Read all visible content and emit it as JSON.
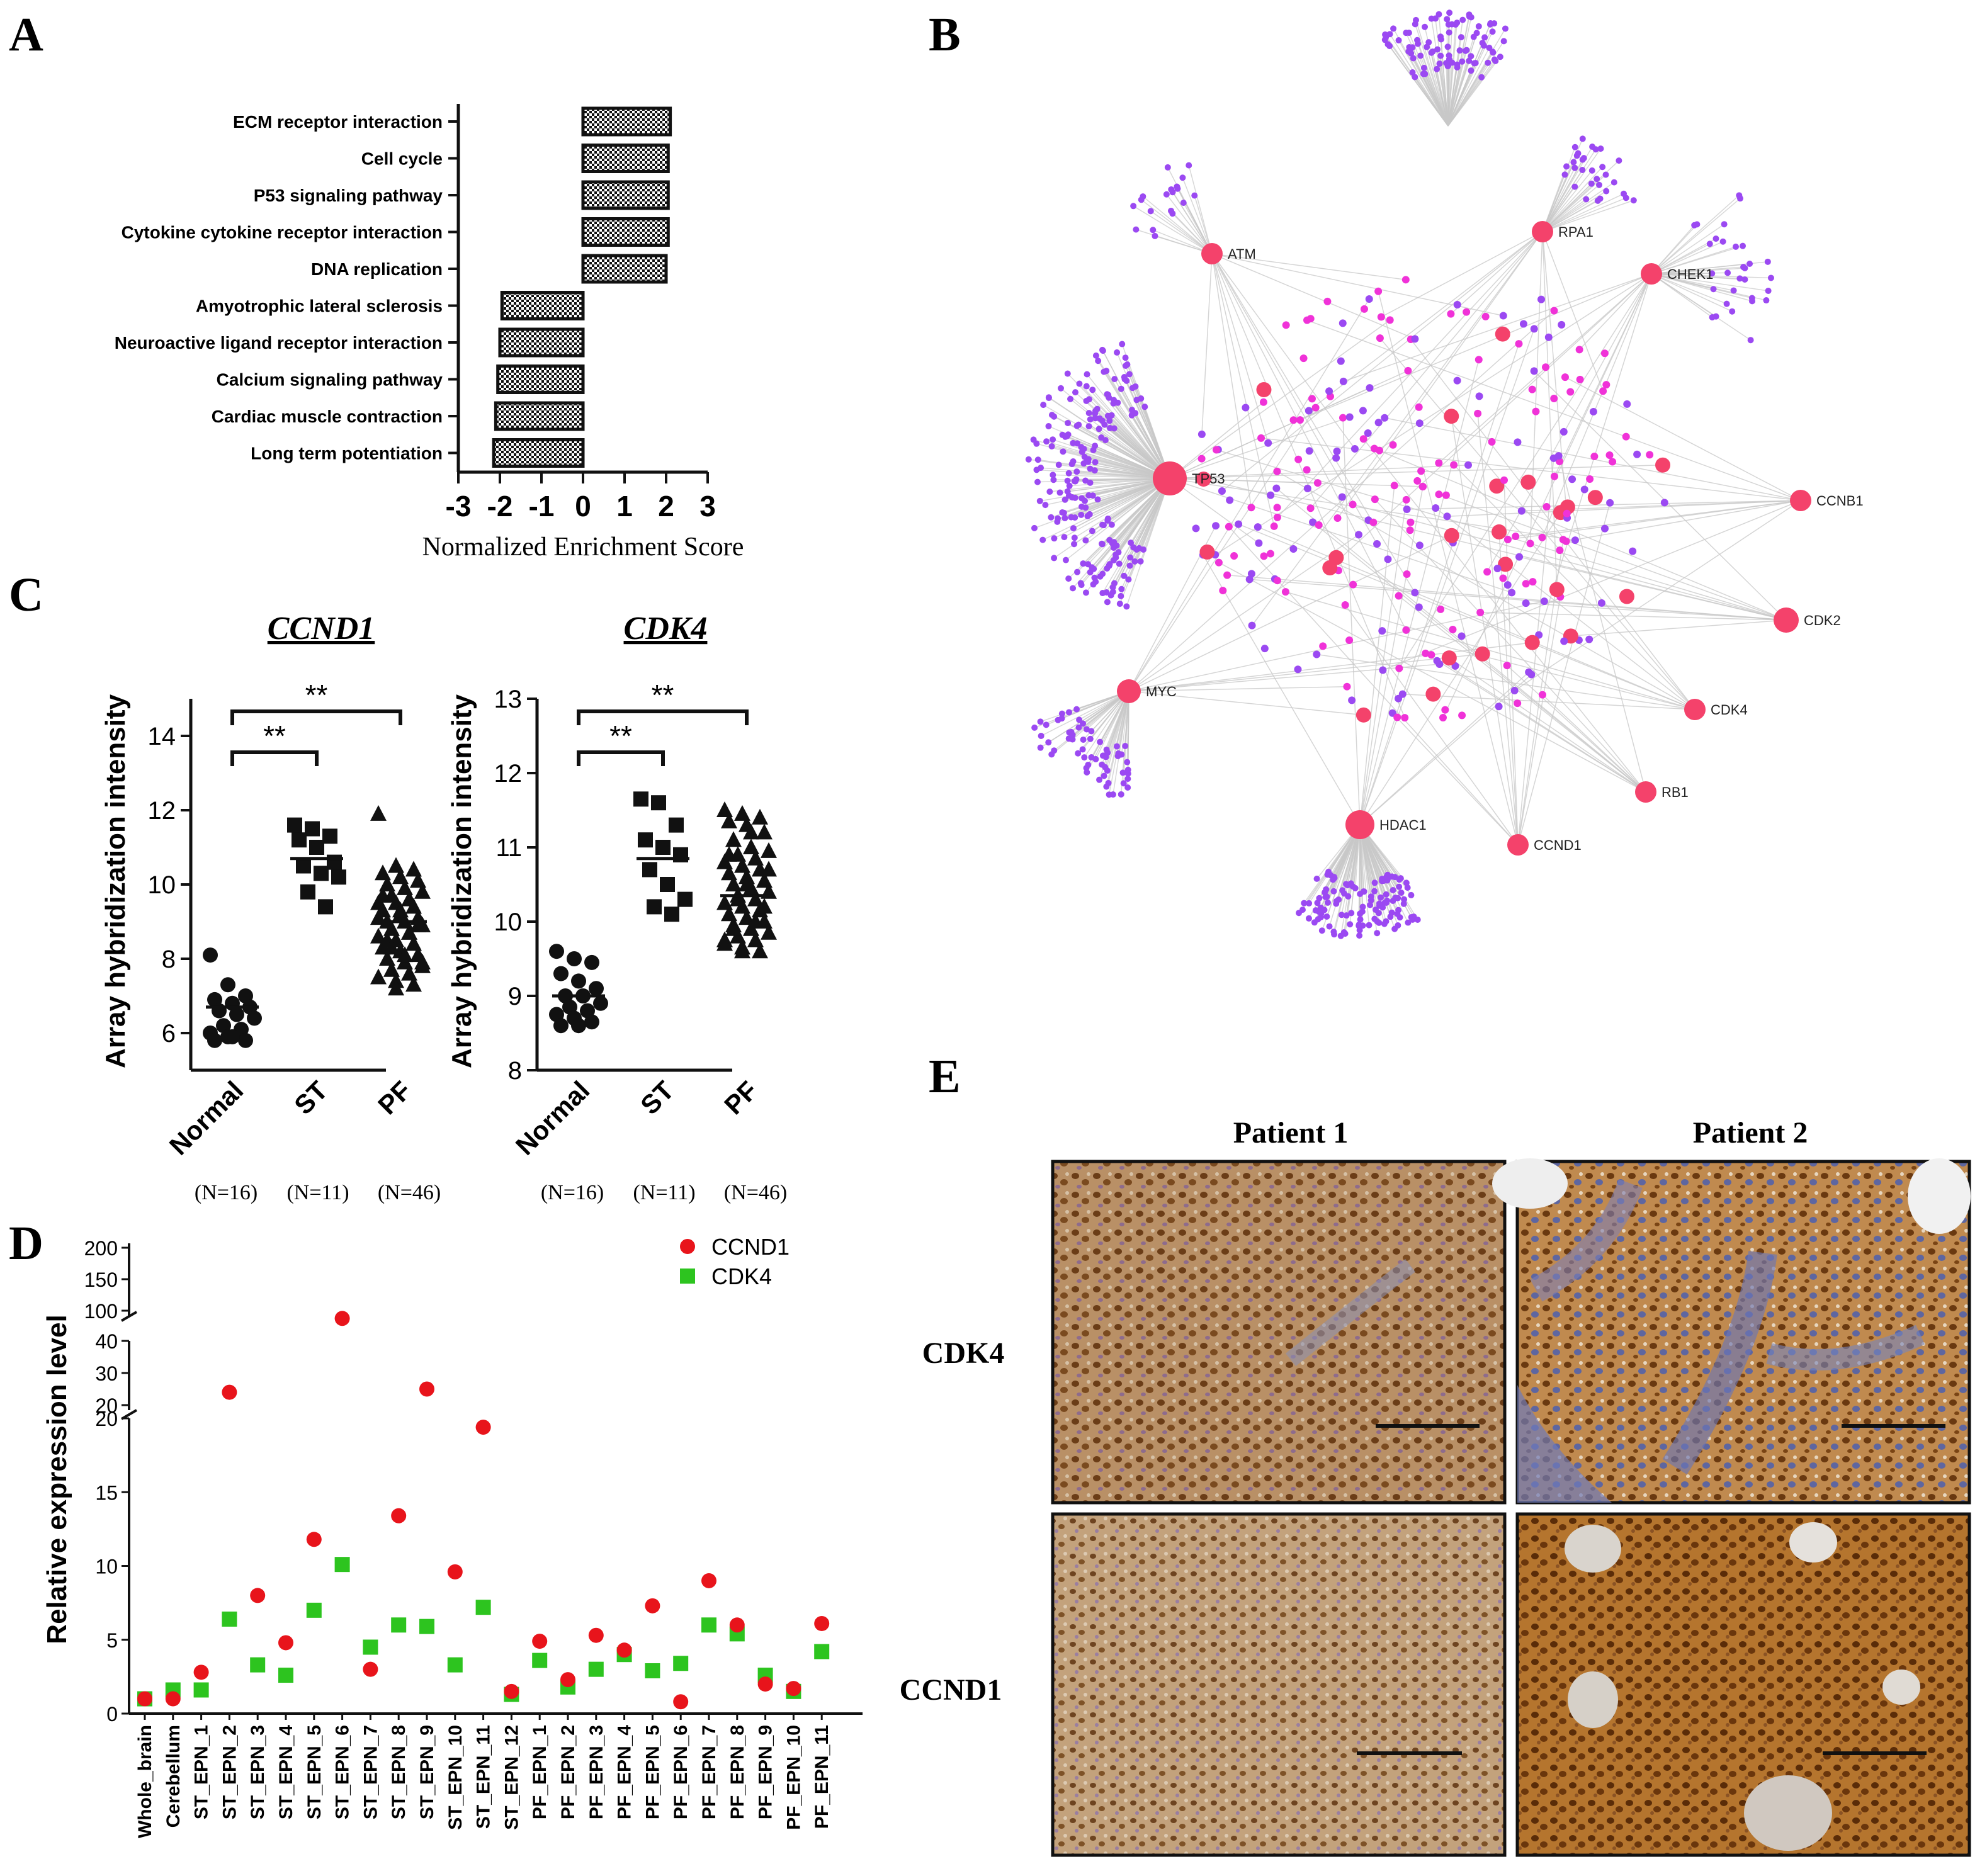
{
  "panels": {
    "a": "A",
    "b": "B",
    "c": "C",
    "d": "D",
    "e": "E"
  },
  "chart_data": [
    {
      "id": "A",
      "type": "bar",
      "orientation": "horizontal",
      "categories": [
        "ECM receptor interaction",
        "Cell cycle",
        "P53 signaling pathway",
        "Cytokine cytokine receptor interaction",
        "DNA replication",
        "Amyotrophic lateral sclerosis",
        "Neuroactive ligand receptor interaction",
        "Calcium signaling pathway",
        "Cardiac muscle contraction",
        "Long term potentiation"
      ],
      "values": [
        2.1,
        2.05,
        2.05,
        2.05,
        2.0,
        -1.95,
        -2.0,
        -2.05,
        -2.1,
        -2.15
      ],
      "xlabel": "Normalized Enrichment Score",
      "xlim": [
        -3,
        3
      ],
      "xticks": [
        "-3",
        "-2",
        "-1",
        "0",
        "1",
        "2",
        "3"
      ]
    },
    {
      "id": "C-CCND1",
      "type": "scatter",
      "title": "CCND1",
      "ylabel": "Array hybridization intensity",
      "ylim": [
        5,
        15
      ],
      "yticks": [
        "6",
        "8",
        "10",
        "12",
        "14"
      ],
      "categories": [
        "Normal",
        "ST",
        "PF"
      ],
      "counts": [
        "(N=16)",
        "(N=11)",
        "(N=46)"
      ],
      "means": [
        6.7,
        10.7,
        9.0
      ],
      "groups": [
        [
          8.1,
          7.3,
          7.0,
          6.9,
          6.8,
          6.7,
          6.6,
          6.5,
          6.4,
          6.2,
          6.1,
          6.0,
          5.9,
          5.8,
          5.8,
          5.9
        ],
        [
          11.6,
          11.5,
          11.3,
          11.2,
          11.0,
          10.6,
          10.5,
          10.3,
          10.2,
          9.8,
          9.4
        ],
        [
          11.9,
          10.5,
          10.4,
          10.3,
          10.2,
          10.1,
          10.0,
          9.9,
          9.8,
          9.7,
          9.6,
          9.5,
          9.5,
          9.4,
          9.3,
          9.2,
          9.1,
          9.0,
          9.0,
          8.9,
          8.8,
          8.7,
          8.6,
          8.5,
          8.4,
          8.3,
          8.2,
          8.1,
          8.0,
          7.9,
          7.8,
          7.7,
          7.6,
          7.5,
          7.4,
          7.3,
          9.7,
          9.3,
          8.9,
          8.5,
          8.1,
          7.9,
          8.3,
          8.7,
          9.1,
          7.2
        ]
      ],
      "significance": [
        "**",
        "**"
      ]
    },
    {
      "id": "C-CDK4",
      "type": "scatter",
      "title": "CDK4",
      "ylabel": "Array hybridization intensity",
      "ylim": [
        8,
        13
      ],
      "yticks": [
        "8",
        "9",
        "10",
        "11",
        "12",
        "13"
      ],
      "categories": [
        "Normal",
        "ST",
        "PF"
      ],
      "counts": [
        "(N=16)",
        "(N=11)",
        "(N=46)"
      ],
      "means": [
        9.0,
        10.85,
        10.35
      ],
      "groups": [
        [
          9.6,
          9.5,
          9.45,
          9.3,
          9.2,
          9.1,
          9.0,
          9.0,
          8.9,
          8.85,
          8.8,
          8.75,
          8.7,
          8.65,
          8.6,
          8.6
        ],
        [
          11.65,
          11.6,
          11.3,
          11.1,
          11.0,
          10.9,
          10.7,
          10.5,
          10.3,
          10.2,
          10.1
        ],
        [
          11.5,
          11.45,
          11.4,
          11.35,
          11.3,
          11.2,
          11.1,
          11.0,
          10.95,
          10.9,
          10.85,
          10.8,
          10.75,
          10.7,
          10.65,
          10.6,
          10.55,
          10.5,
          10.45,
          10.4,
          10.35,
          10.3,
          10.25,
          10.2,
          10.15,
          10.1,
          10.05,
          10.0,
          9.95,
          9.9,
          9.85,
          9.8,
          9.75,
          9.7,
          9.65,
          9.6,
          10.9,
          10.5,
          10.2,
          9.9,
          11.2,
          10.7,
          10.3,
          10.0,
          9.75,
          9.6
        ]
      ],
      "significance": [
        "**",
        "**"
      ]
    },
    {
      "id": "D",
      "type": "scatter",
      "ylabel": "Relative expression level",
      "yticks_low": [
        "0",
        "5",
        "10",
        "15",
        "20"
      ],
      "yticks_mid": [
        "20",
        "30",
        "40"
      ],
      "yticks_high": [
        "100",
        "150",
        "200"
      ],
      "categories": [
        "Whole_brain",
        "Cerebellum",
        "ST_EPN_1",
        "ST_EPN_2",
        "ST_EPN_3",
        "ST_EPN_4",
        "ST_EPN_5",
        "ST_EPN_6",
        "ST_EPN_7",
        "ST_EPN_8",
        "ST_EPN_9",
        "ST_EPN_10",
        "ST_EPN_11",
        "ST_EPN_12",
        "PF_EPN_1",
        "PF_EPN_2",
        "PF_EPN_3",
        "PF_EPN_4",
        "PF_EPN_5",
        "PF_EPN_6",
        "PF_EPN_7",
        "PF_EPN_8",
        "PF_EPN_9",
        "PF_EPN_10",
        "PF_EPN_11"
      ],
      "series": [
        {
          "name": "CCND1",
          "color": "#e8141b",
          "values": [
            1.0,
            1.0,
            2.8,
            24.0,
            8.0,
            4.8,
            11.8,
            47.0,
            3.0,
            13.4,
            25.0,
            9.6,
            19.4,
            1.5,
            4.9,
            2.3,
            5.3,
            4.3,
            7.3,
            0.8,
            9.0,
            6.0,
            2.0,
            1.7,
            6.1
          ]
        },
        {
          "name": "CDK4",
          "color": "#2dc41f",
          "values": [
            1.0,
            1.6,
            1.6,
            6.4,
            3.3,
            2.6,
            7.0,
            10.1,
            4.5,
            6.0,
            5.9,
            3.3,
            7.2,
            1.3,
            3.6,
            1.8,
            3.0,
            4.0,
            2.9,
            3.4,
            6.0,
            5.4,
            2.6,
            1.5,
            4.2
          ]
        }
      ]
    }
  ],
  "network": {
    "hubs": [
      "ATM",
      "RPA1",
      "CHEK1",
      "TP53",
      "CCNB1",
      "CDK2",
      "MYC",
      "CDK4",
      "RB1",
      "HDAC1",
      "CCND1"
    ],
    "hub_color": "#f4426b",
    "inner_color": "#f032d8",
    "outer_color": "#9b49f2",
    "edge_color": "#c8c8c8"
  },
  "ihc": {
    "columns": [
      "Patient 1",
      "Patient 2"
    ],
    "rows": [
      "CDK4",
      "CCND1"
    ]
  }
}
